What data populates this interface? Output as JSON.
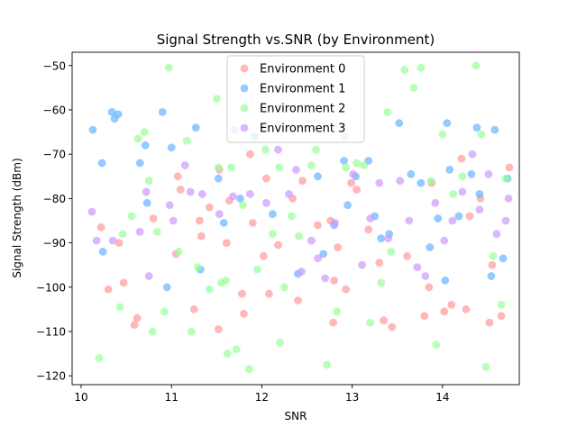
{
  "chart_data": {
    "type": "scatter",
    "title": "Signal Strength vs.SNR (by Environment)",
    "xlabel": "SNR",
    "ylabel": "Signal Strength (dBm)",
    "xlim": [
      9.9,
      14.85
    ],
    "ylim": [
      -122,
      -47
    ],
    "xticks": [
      10,
      11,
      12,
      13,
      14
    ],
    "yticks": [
      -120,
      -110,
      -100,
      -90,
      -80,
      -70,
      -60,
      -50
    ],
    "grid": false,
    "legend_position": "upper center",
    "series": [
      {
        "name": "Environment 0",
        "color": "#ff9999",
        "points": [
          [
            10.22,
            -86.5
          ],
          [
            10.3,
            -100.5
          ],
          [
            10.42,
            -90.0
          ],
          [
            10.47,
            -99.0
          ],
          [
            10.59,
            -108.5
          ],
          [
            10.62,
            -107.0
          ],
          [
            10.8,
            -84.5
          ],
          [
            11.05,
            -92.5
          ],
          [
            11.07,
            -75.0
          ],
          [
            11.1,
            -78.0
          ],
          [
            11.25,
            -105.0
          ],
          [
            11.31,
            -85.0
          ],
          [
            11.33,
            -88.5
          ],
          [
            11.42,
            -82.0
          ],
          [
            11.52,
            -109.5
          ],
          [
            11.53,
            -73.5
          ],
          [
            11.61,
            -90.0
          ],
          [
            11.64,
            -80.5
          ],
          [
            11.78,
            -101.5
          ],
          [
            11.8,
            -106.0
          ],
          [
            11.87,
            -70.0
          ],
          [
            11.9,
            -85.5
          ],
          [
            12.02,
            -93.0
          ],
          [
            12.05,
            -75.5
          ],
          [
            12.08,
            -101.5
          ],
          [
            12.18,
            -90.5
          ],
          [
            12.34,
            -80.0
          ],
          [
            12.4,
            -103.0
          ],
          [
            12.45,
            -76.0
          ],
          [
            12.62,
            -86.0
          ],
          [
            12.76,
            -85.0
          ],
          [
            12.79,
            -108.0
          ],
          [
            12.8,
            -98.5
          ],
          [
            12.84,
            -91.0
          ],
          [
            12.93,
            -100.5
          ],
          [
            12.99,
            -76.5
          ],
          [
            13.05,
            -78.0
          ],
          [
            13.18,
            -87.0
          ],
          [
            13.3,
            -94.5
          ],
          [
            13.35,
            -107.5
          ],
          [
            13.44,
            -109.0
          ],
          [
            13.61,
            -93.0
          ],
          [
            13.8,
            -106.5
          ],
          [
            13.85,
            -100.0
          ],
          [
            13.88,
            -76.5
          ],
          [
            14.02,
            -105.5
          ],
          [
            14.1,
            -104.0
          ],
          [
            14.21,
            -71.0
          ],
          [
            14.26,
            -105.0
          ],
          [
            14.3,
            -84.0
          ],
          [
            14.42,
            -80.0
          ],
          [
            14.52,
            -108.0
          ],
          [
            14.55,
            -95.0
          ],
          [
            14.65,
            -106.5
          ],
          [
            14.74,
            -73.0
          ]
        ]
      },
      {
        "name": "Environment 1",
        "color": "#66b3ff",
        "points": [
          [
            10.13,
            -64.5
          ],
          [
            10.23,
            -72.0
          ],
          [
            10.24,
            -92.0
          ],
          [
            10.34,
            -60.5
          ],
          [
            10.37,
            -62.0
          ],
          [
            10.41,
            -61.0
          ],
          [
            10.65,
            -72.0
          ],
          [
            10.71,
            -68.0
          ],
          [
            10.73,
            -81.0
          ],
          [
            10.9,
            -60.5
          ],
          [
            10.95,
            -100.0
          ],
          [
            11.0,
            -68.5
          ],
          [
            11.27,
            -64.0
          ],
          [
            11.32,
            -96.0
          ],
          [
            11.52,
            -75.5
          ],
          [
            11.58,
            -85.5
          ],
          [
            11.7,
            -64.5
          ],
          [
            11.76,
            -80.0
          ],
          [
            11.92,
            -66.0
          ],
          [
            12.12,
            -83.5
          ],
          [
            12.4,
            -97.0
          ],
          [
            12.62,
            -75.0
          ],
          [
            12.68,
            -92.5
          ],
          [
            12.8,
            -86.0
          ],
          [
            12.91,
            -71.5
          ],
          [
            12.95,
            -81.5
          ],
          [
            13.04,
            -75.0
          ],
          [
            13.18,
            -71.5
          ],
          [
            13.25,
            -84.0
          ],
          [
            13.32,
            -89.0
          ],
          [
            13.41,
            -88.0
          ],
          [
            13.52,
            -63.0
          ],
          [
            13.65,
            -74.5
          ],
          [
            13.76,
            -76.5
          ],
          [
            13.86,
            -91.0
          ],
          [
            13.95,
            -84.5
          ],
          [
            14.03,
            -98.5
          ],
          [
            14.05,
            -63.0
          ],
          [
            14.08,
            -73.5
          ],
          [
            14.18,
            -84.0
          ],
          [
            14.32,
            -74.5
          ],
          [
            14.38,
            -64.0
          ],
          [
            14.41,
            -79.0
          ],
          [
            14.54,
            -97.5
          ],
          [
            14.58,
            -64.5
          ],
          [
            14.67,
            -93.5
          ],
          [
            14.72,
            -75.5
          ]
        ]
      },
      {
        "name": "Environment 2",
        "color": "#99ff99",
        "points": [
          [
            10.2,
            -116.0
          ],
          [
            10.43,
            -104.5
          ],
          [
            10.46,
            -88.0
          ],
          [
            10.56,
            -84.0
          ],
          [
            10.63,
            -66.5
          ],
          [
            10.7,
            -65.0
          ],
          [
            10.75,
            -76.0
          ],
          [
            10.79,
            -110.0
          ],
          [
            10.84,
            -87.5
          ],
          [
            10.92,
            -105.5
          ],
          [
            10.97,
            -50.5
          ],
          [
            11.08,
            -92.0
          ],
          [
            11.17,
            -67.0
          ],
          [
            11.22,
            -110.0
          ],
          [
            11.29,
            -95.5
          ],
          [
            11.42,
            -100.5
          ],
          [
            11.5,
            -57.5
          ],
          [
            11.52,
            -73.0
          ],
          [
            11.55,
            -99.0
          ],
          [
            11.6,
            -98.5
          ],
          [
            11.62,
            -115.0
          ],
          [
            11.66,
            -73.0
          ],
          [
            11.72,
            -114.0
          ],
          [
            11.79,
            -81.5
          ],
          [
            11.86,
            -118.5
          ],
          [
            11.95,
            -96.0
          ],
          [
            12.04,
            -69.0
          ],
          [
            12.12,
            -88.0
          ],
          [
            12.19,
            -73.0
          ],
          [
            12.2,
            -112.5
          ],
          [
            12.25,
            -100.0
          ],
          [
            12.33,
            -84.0
          ],
          [
            12.41,
            -88.5
          ],
          [
            12.55,
            -72.5
          ],
          [
            12.6,
            -69.0
          ],
          [
            12.72,
            -117.5
          ],
          [
            12.83,
            -105.5
          ],
          [
            12.93,
            -73.0
          ],
          [
            13.05,
            -72.0
          ],
          [
            13.13,
            -72.5
          ],
          [
            13.2,
            -108.0
          ],
          [
            13.32,
            -99.0
          ],
          [
            13.39,
            -60.5
          ],
          [
            13.43,
            -92.0
          ],
          [
            13.58,
            -51.0
          ],
          [
            13.68,
            -55.0
          ],
          [
            13.76,
            -50.5
          ],
          [
            13.87,
            -76.0
          ],
          [
            13.93,
            -113.0
          ],
          [
            14.0,
            -65.5
          ],
          [
            14.12,
            -79.0
          ],
          [
            14.22,
            -75.0
          ],
          [
            14.37,
            -50.0
          ],
          [
            14.43,
            -65.5
          ],
          [
            14.48,
            -118.0
          ],
          [
            14.56,
            -93.0
          ],
          [
            14.65,
            -104.0
          ],
          [
            14.7,
            -75.5
          ]
        ]
      },
      {
        "name": "Environment 3",
        "color": "#cc99ff",
        "points": [
          [
            10.12,
            -83.0
          ],
          [
            10.17,
            -89.5
          ],
          [
            10.35,
            -89.5
          ],
          [
            10.65,
            -87.5
          ],
          [
            10.72,
            -78.5
          ],
          [
            10.75,
            -97.5
          ],
          [
            10.98,
            -81.5
          ],
          [
            11.02,
            -85.0
          ],
          [
            11.15,
            -72.5
          ],
          [
            11.21,
            -78.5
          ],
          [
            11.34,
            -79.0
          ],
          [
            11.53,
            -83.5
          ],
          [
            11.68,
            -79.5
          ],
          [
            11.87,
            -79.0
          ],
          [
            12.05,
            -81.0
          ],
          [
            12.18,
            -69.0
          ],
          [
            12.3,
            -79.0
          ],
          [
            12.38,
            -73.5
          ],
          [
            12.44,
            -96.5
          ],
          [
            12.55,
            -89.5
          ],
          [
            12.62,
            -93.5
          ],
          [
            12.7,
            -98.0
          ],
          [
            12.81,
            -85.5
          ],
          [
            12.92,
            -66.0
          ],
          [
            13.01,
            -74.5
          ],
          [
            13.11,
            -95.0
          ],
          [
            13.2,
            -84.5
          ],
          [
            13.3,
            -76.5
          ],
          [
            13.4,
            -89.0
          ],
          [
            13.53,
            -76.0
          ],
          [
            13.63,
            -85.0
          ],
          [
            13.72,
            -95.5
          ],
          [
            13.81,
            -97.5
          ],
          [
            13.92,
            -81.0
          ],
          [
            14.02,
            -89.5
          ],
          [
            14.11,
            -85.0
          ],
          [
            14.22,
            -78.5
          ],
          [
            14.33,
            -70.0
          ],
          [
            14.41,
            -82.5
          ],
          [
            14.51,
            -74.5
          ],
          [
            14.6,
            -88.0
          ],
          [
            14.7,
            -85.0
          ],
          [
            14.73,
            -80.0
          ]
        ]
      }
    ]
  }
}
